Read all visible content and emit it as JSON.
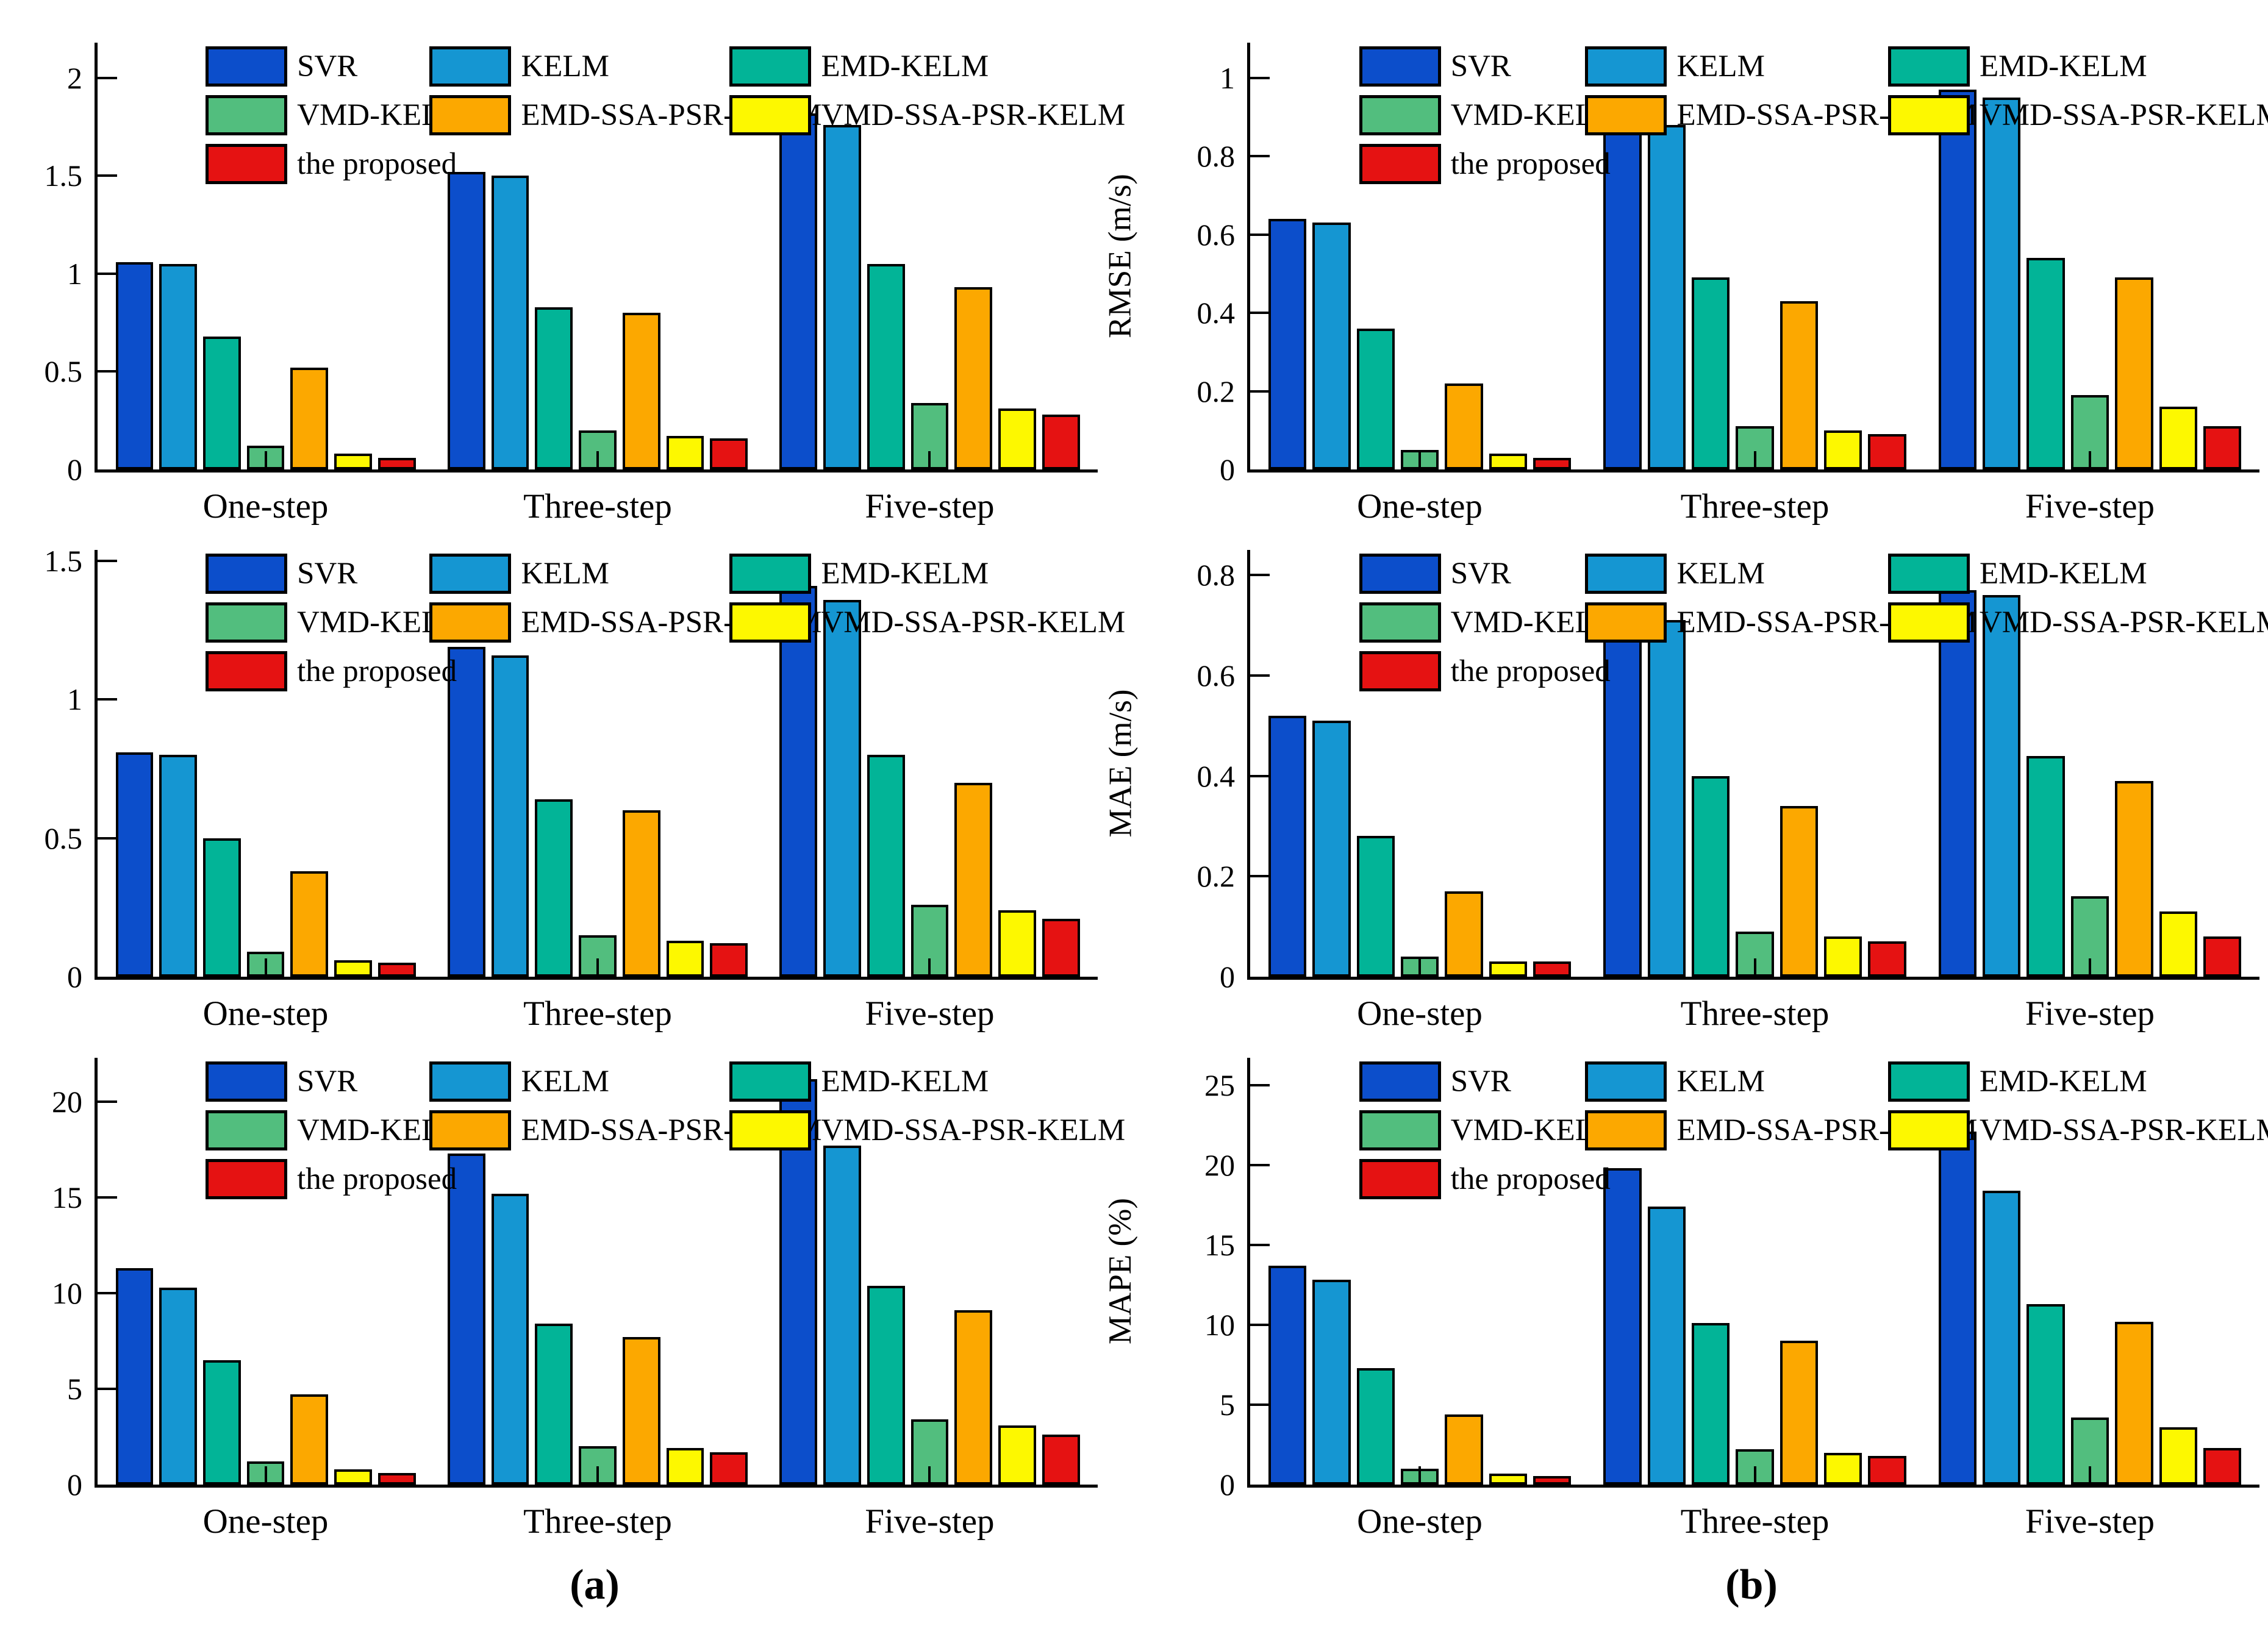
{
  "figure": {
    "captions": {
      "left": "(a)",
      "right": "(b)"
    }
  },
  "legend": {
    "layout_columns": 3,
    "items": [
      {
        "label": "SVR",
        "color": "#0C4ECB"
      },
      {
        "label": "KELM",
        "color": "#1596D2"
      },
      {
        "label": "EMD-KELM",
        "color": "#02B497"
      },
      {
        "label": "VMD-KELM",
        "color": "#52BE7E"
      },
      {
        "label": "EMD-SSA-PSR-KELM",
        "color": "#FCA800"
      },
      {
        "label": "VMD-SSA-PSR-KELM",
        "color": "#FDF800"
      },
      {
        "label": "the proposed",
        "color": "#E51212"
      }
    ]
  },
  "chart_data": [
    {
      "id": "rmse-a",
      "type": "bar",
      "row": 0,
      "col": 0,
      "ylabel": "RMSE (m/s)",
      "ylim": [
        0,
        2.18
      ],
      "yticks_values": [
        0,
        0.5,
        1,
        1.5,
        2
      ],
      "yticks_labels": [
        "0",
        "0.5",
        "1",
        "1.5",
        "2"
      ],
      "categories": [
        "One-step",
        "Three-step",
        "Five-step"
      ],
      "grid": false,
      "legend_position": "top-inside",
      "series": [
        {
          "name": "SVR",
          "values": [
            1.06,
            1.52,
            1.82
          ]
        },
        {
          "name": "KELM",
          "values": [
            1.05,
            1.5,
            1.76
          ]
        },
        {
          "name": "EMD-KELM",
          "values": [
            0.68,
            0.83,
            1.05
          ]
        },
        {
          "name": "VMD-KELM",
          "values": [
            0.12,
            0.2,
            0.34
          ]
        },
        {
          "name": "EMD-SSA-PSR-KELM",
          "values": [
            0.52,
            0.8,
            0.93
          ]
        },
        {
          "name": "VMD-SSA-PSR-KELM",
          "values": [
            0.08,
            0.17,
            0.31
          ]
        },
        {
          "name": "the proposed",
          "values": [
            0.06,
            0.16,
            0.28
          ]
        }
      ]
    },
    {
      "id": "rmse-b",
      "type": "bar",
      "row": 0,
      "col": 1,
      "ylabel": "RMSE (m/s)",
      "ylim": [
        0,
        1.09
      ],
      "yticks_values": [
        0,
        0.2,
        0.4,
        0.6,
        0.8,
        1
      ],
      "yticks_labels": [
        "0",
        "0.2",
        "0.4",
        "0.6",
        "0.8",
        "1"
      ],
      "categories": [
        "One-step",
        "Three-step",
        "Five-step"
      ],
      "grid": false,
      "legend_position": "top-inside",
      "series": [
        {
          "name": "SVR",
          "values": [
            0.64,
            0.93,
            0.97
          ]
        },
        {
          "name": "KELM",
          "values": [
            0.63,
            0.88,
            0.95
          ]
        },
        {
          "name": "EMD-KELM",
          "values": [
            0.36,
            0.49,
            0.54
          ]
        },
        {
          "name": "VMD-KELM",
          "values": [
            0.05,
            0.11,
            0.19
          ]
        },
        {
          "name": "EMD-SSA-PSR-KELM",
          "values": [
            0.22,
            0.43,
            0.49
          ]
        },
        {
          "name": "VMD-SSA-PSR-KELM",
          "values": [
            0.04,
            0.1,
            0.16
          ]
        },
        {
          "name": "the proposed",
          "values": [
            0.03,
            0.09,
            0.11
          ]
        }
      ]
    },
    {
      "id": "mae-a",
      "type": "bar",
      "row": 1,
      "col": 0,
      "ylabel": "MAE (m/s)",
      "ylim": [
        0,
        1.54
      ],
      "yticks_values": [
        0,
        0.5,
        1,
        1.5
      ],
      "yticks_labels": [
        "0",
        "0.5",
        "1",
        "1.5"
      ],
      "categories": [
        "One-step",
        "Three-step",
        "Five-step"
      ],
      "grid": false,
      "legend_position": "top-inside",
      "series": [
        {
          "name": "SVR",
          "values": [
            0.81,
            1.19,
            1.41
          ]
        },
        {
          "name": "KELM",
          "values": [
            0.8,
            1.16,
            1.36
          ]
        },
        {
          "name": "EMD-KELM",
          "values": [
            0.5,
            0.64,
            0.8
          ]
        },
        {
          "name": "VMD-KELM",
          "values": [
            0.09,
            0.15,
            0.26
          ]
        },
        {
          "name": "EMD-SSA-PSR-KELM",
          "values": [
            0.38,
            0.6,
            0.7
          ]
        },
        {
          "name": "VMD-SSA-PSR-KELM",
          "values": [
            0.06,
            0.13,
            0.24
          ]
        },
        {
          "name": "the proposed",
          "values": [
            0.05,
            0.12,
            0.21
          ]
        }
      ]
    },
    {
      "id": "mae-b",
      "type": "bar",
      "row": 1,
      "col": 1,
      "ylabel": "MAE (m/s)",
      "ylim": [
        0,
        0.85
      ],
      "yticks_values": [
        0,
        0.2,
        0.4,
        0.6,
        0.8
      ],
      "yticks_labels": [
        "0",
        "0.2",
        "0.4",
        "0.6",
        "0.8"
      ],
      "categories": [
        "One-step",
        "Three-step",
        "Five-step"
      ],
      "grid": false,
      "legend_position": "top-inside",
      "series": [
        {
          "name": "SVR",
          "values": [
            0.52,
            0.74,
            0.77
          ]
        },
        {
          "name": "KELM",
          "values": [
            0.51,
            0.71,
            0.76
          ]
        },
        {
          "name": "EMD-KELM",
          "values": [
            0.28,
            0.4,
            0.44
          ]
        },
        {
          "name": "VMD-KELM",
          "values": [
            0.04,
            0.09,
            0.16
          ]
        },
        {
          "name": "EMD-SSA-PSR-KELM",
          "values": [
            0.17,
            0.34,
            0.39
          ]
        },
        {
          "name": "VMD-SSA-PSR-KELM",
          "values": [
            0.03,
            0.08,
            0.13
          ]
        },
        {
          "name": "the proposed",
          "values": [
            0.03,
            0.07,
            0.08
          ]
        }
      ]
    },
    {
      "id": "mape-a",
      "type": "bar",
      "row": 2,
      "col": 0,
      "ylabel": "MAPE (%)",
      "ylim": [
        0,
        22.3
      ],
      "yticks_values": [
        0,
        5,
        10,
        15,
        20
      ],
      "yticks_labels": [
        "0",
        "5",
        "10",
        "15",
        "20"
      ],
      "categories": [
        "One-step",
        "Three-step",
        "Five-step"
      ],
      "grid": false,
      "legend_position": "top-inside",
      "series": [
        {
          "name": "SVR",
          "values": [
            11.3,
            17.3,
            21.2
          ]
        },
        {
          "name": "KELM",
          "values": [
            10.3,
            15.2,
            17.7
          ]
        },
        {
          "name": "EMD-KELM",
          "values": [
            6.5,
            8.4,
            10.4
          ]
        },
        {
          "name": "VMD-KELM",
          "values": [
            1.2,
            2.0,
            3.4
          ]
        },
        {
          "name": "EMD-SSA-PSR-KELM",
          "values": [
            4.7,
            7.7,
            9.1
          ]
        },
        {
          "name": "VMD-SSA-PSR-KELM",
          "values": [
            0.8,
            1.9,
            3.1
          ]
        },
        {
          "name": "the proposed",
          "values": [
            0.6,
            1.7,
            2.6
          ]
        }
      ]
    },
    {
      "id": "mape-b",
      "type": "bar",
      "row": 2,
      "col": 1,
      "ylabel": "MAPE (%)",
      "ylim": [
        0,
        26.7
      ],
      "yticks_values": [
        0,
        5,
        10,
        15,
        20,
        25
      ],
      "yticks_labels": [
        "0",
        "5",
        "10",
        "15",
        "20",
        "25"
      ],
      "categories": [
        "One-step",
        "Three-step",
        "Five-step"
      ],
      "grid": false,
      "legend_position": "top-inside",
      "series": [
        {
          "name": "SVR",
          "values": [
            13.7,
            19.8,
            22.1
          ]
        },
        {
          "name": "KELM",
          "values": [
            12.8,
            17.4,
            18.4
          ]
        },
        {
          "name": "EMD-KELM",
          "values": [
            7.3,
            10.1,
            11.3
          ]
        },
        {
          "name": "VMD-KELM",
          "values": [
            1.0,
            2.2,
            4.2
          ]
        },
        {
          "name": "EMD-SSA-PSR-KELM",
          "values": [
            4.4,
            9.0,
            10.2
          ]
        },
        {
          "name": "VMD-SSA-PSR-KELM",
          "values": [
            0.7,
            2.0,
            3.6
          ]
        },
        {
          "name": "the proposed",
          "values": [
            0.55,
            1.8,
            2.3
          ]
        }
      ]
    }
  ]
}
